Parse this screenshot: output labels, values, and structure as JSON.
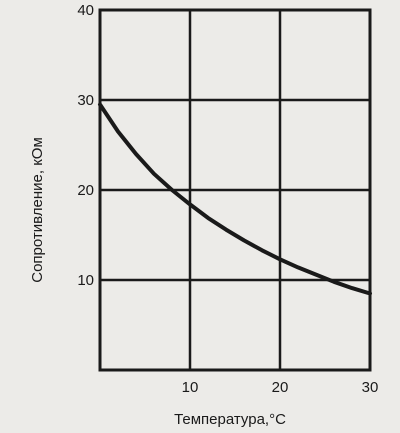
{
  "chart_data": {
    "type": "line",
    "xlabel": "Температура,°C",
    "ylabel": "Сопротивление, кОм",
    "xlim": [
      0,
      30
    ],
    "ylim": [
      0,
      40
    ],
    "xticks": [
      "10",
      "20",
      "30"
    ],
    "yticks": [
      "10",
      "20",
      "30",
      "40"
    ],
    "grid": true,
    "series": [
      {
        "color": "#1a1a1a",
        "x": [
          0,
          2,
          4,
          6,
          8,
          10,
          12,
          14,
          16,
          18,
          20,
          22,
          24,
          26,
          28,
          30
        ],
        "y": [
          29.5,
          26.5,
          24.0,
          21.8,
          20.0,
          18.4,
          16.9,
          15.6,
          14.4,
          13.3,
          12.3,
          11.4,
          10.6,
          9.8,
          9.1,
          8.5
        ]
      }
    ]
  }
}
